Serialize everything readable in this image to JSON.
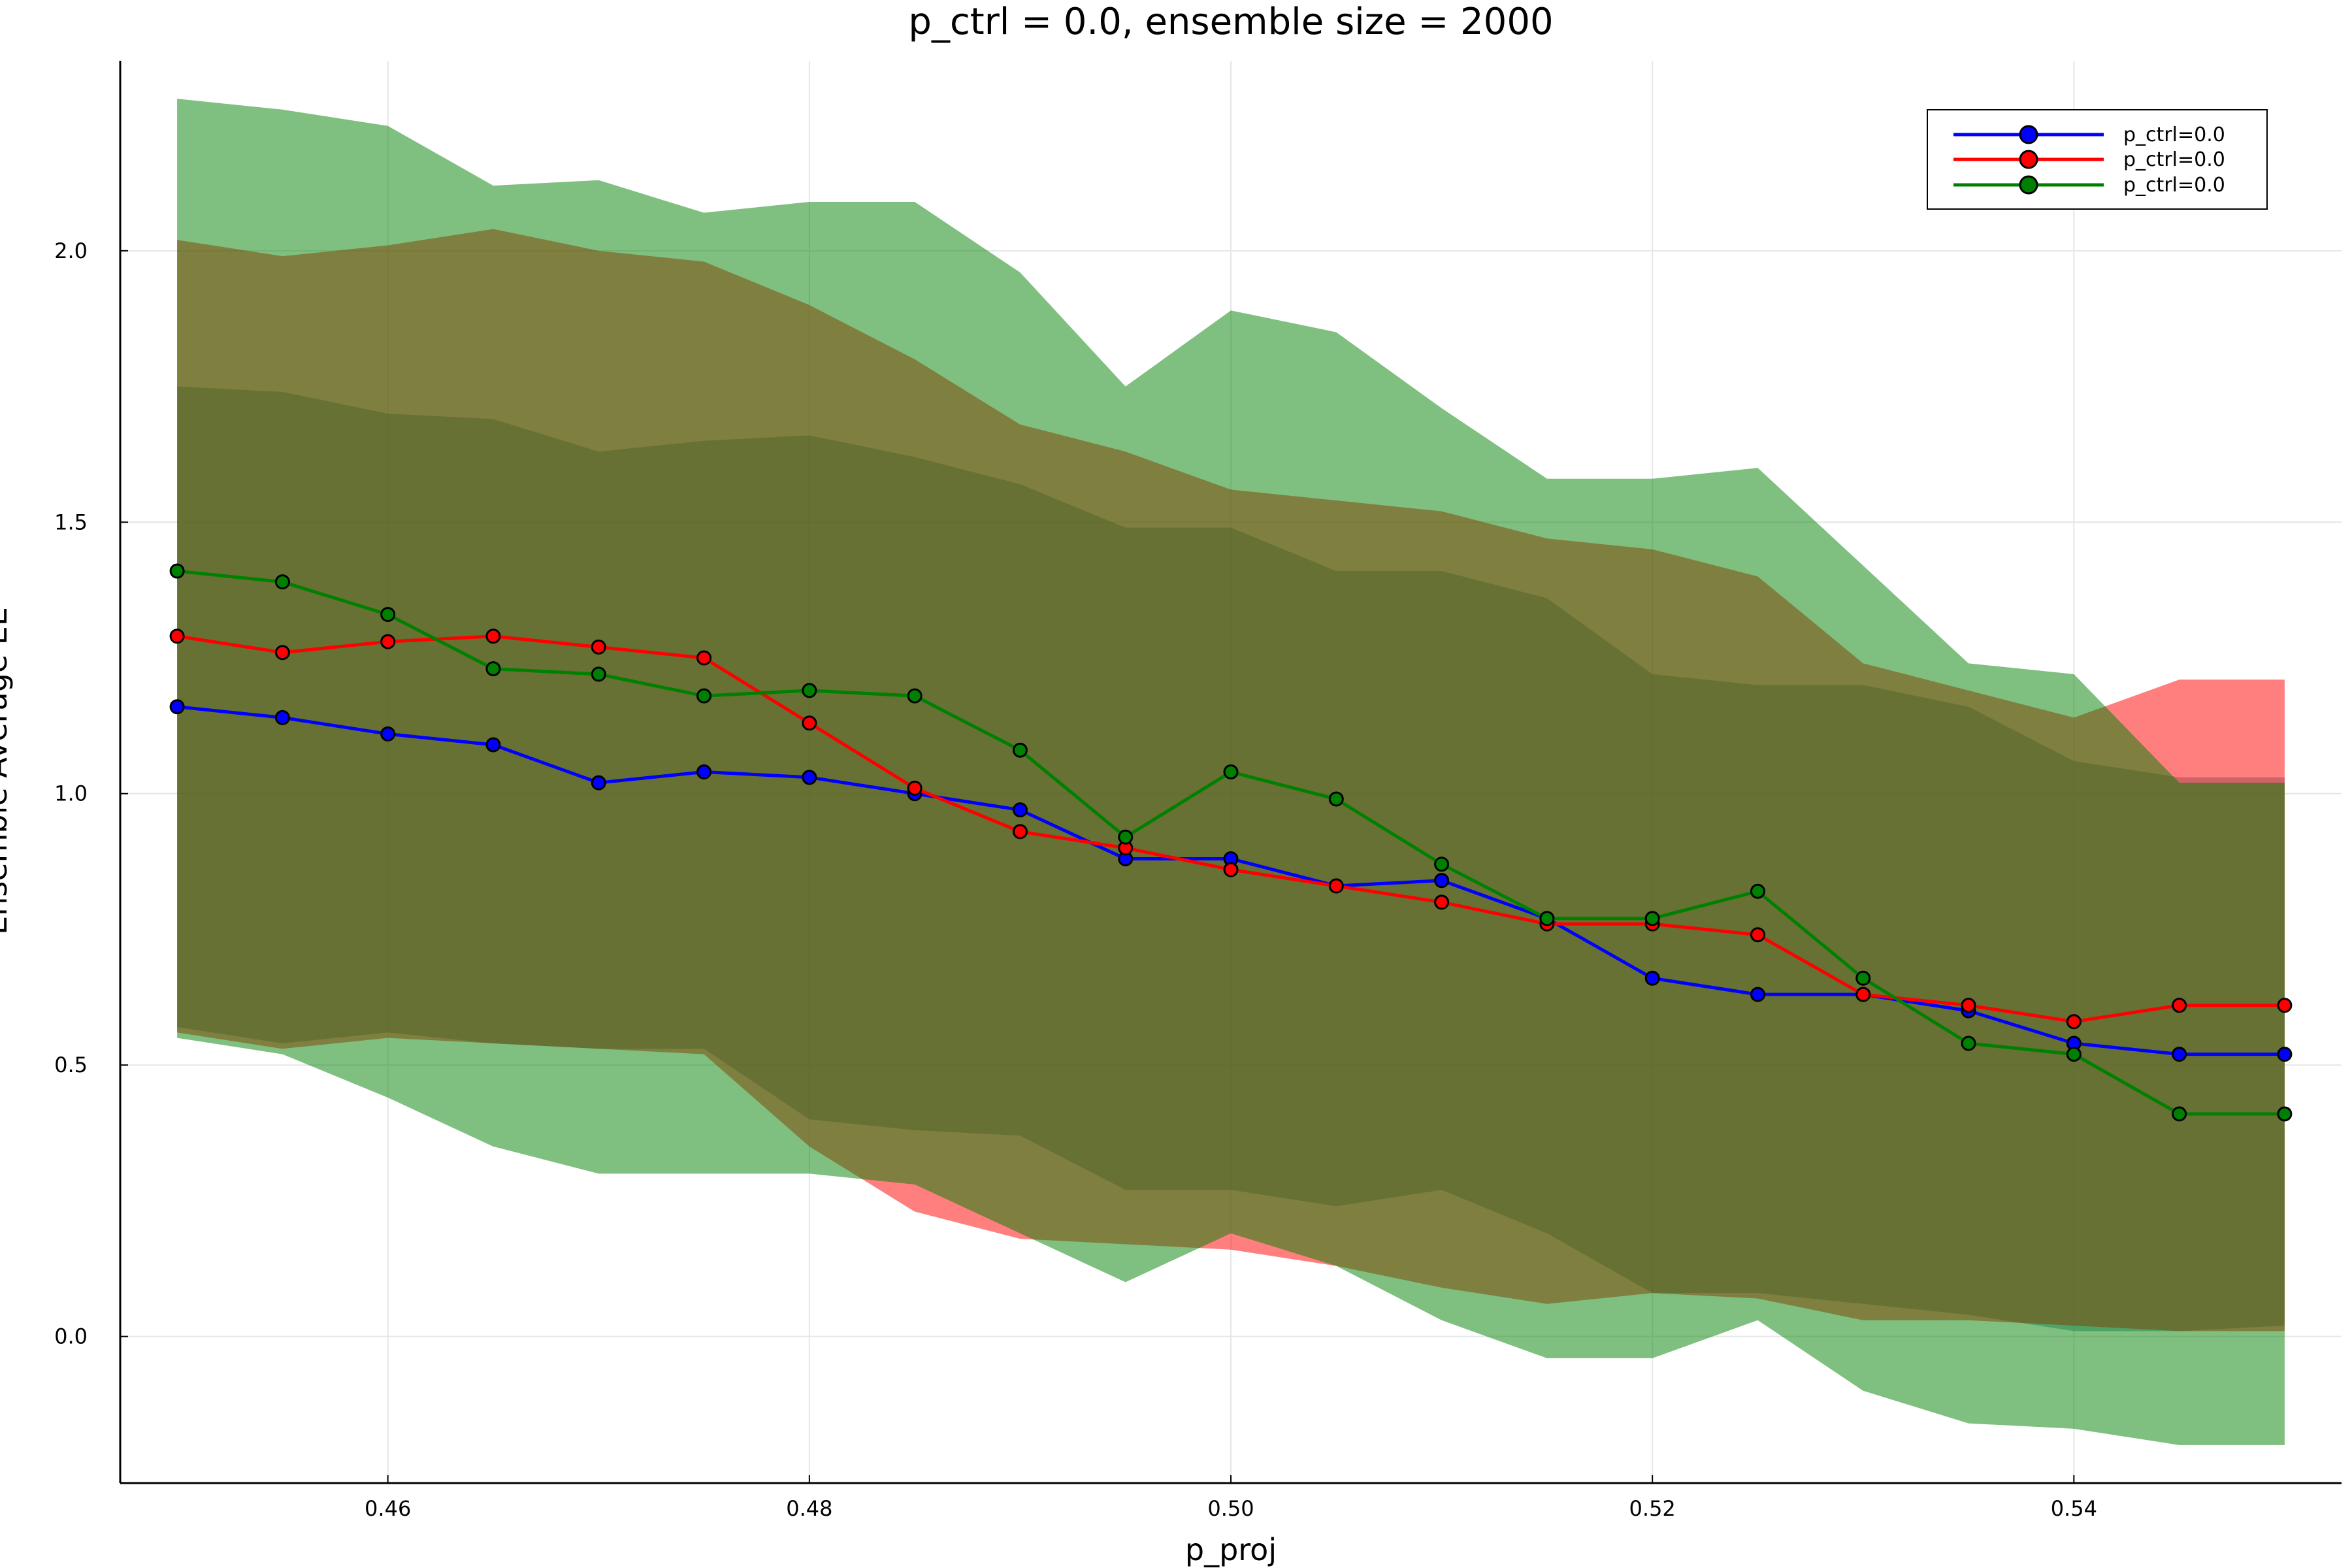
{
  "chart_data": {
    "type": "line",
    "title": "p_ctrl = 0.0, ensemble size = 2000",
    "xlabel": "p_proj",
    "ylabel": "Ensemble Average EE",
    "xlim": [
      0.4473,
      0.5527
    ],
    "ylim": [
      -0.27,
      2.35
    ],
    "xticks": [
      0.46,
      0.48,
      0.5,
      0.52,
      0.54
    ],
    "xtick_labels": [
      "0.46",
      "0.48",
      "0.50",
      "0.52",
      "0.54"
    ],
    "yticks": [
      0.0,
      0.5,
      1.0,
      1.5,
      2.0
    ],
    "ytick_labels": [
      "0.0",
      "0.5",
      "1.0",
      "1.5",
      "2.0"
    ],
    "grid": true,
    "legend_position": "top-right",
    "x": [
      0.45,
      0.455,
      0.46,
      0.465,
      0.47,
      0.475,
      0.48,
      0.485,
      0.49,
      0.495,
      0.5,
      0.505,
      0.51,
      0.515,
      0.52,
      0.525,
      0.53,
      0.535,
      0.54,
      0.545,
      0.55
    ],
    "series": [
      {
        "name": "p_ctrl=0.0",
        "color": "#0000ff",
        "band_color": "#3f8da0",
        "values": [
          1.16,
          1.14,
          1.11,
          1.09,
          1.02,
          1.04,
          1.03,
          1.0,
          0.97,
          0.88,
          0.88,
          0.83,
          0.84,
          0.77,
          0.66,
          0.63,
          0.63,
          0.6,
          0.54,
          0.52,
          0.52
        ],
        "upper": [
          1.75,
          1.74,
          1.7,
          1.69,
          1.63,
          1.65,
          1.66,
          1.62,
          1.57,
          1.49,
          1.49,
          1.41,
          1.41,
          1.36,
          1.22,
          1.2,
          1.2,
          1.16,
          1.06,
          1.03,
          1.03
        ],
        "lower": [
          0.57,
          0.54,
          0.56,
          0.54,
          0.53,
          0.53,
          0.4,
          0.38,
          0.37,
          0.27,
          0.27,
          0.24,
          0.27,
          0.19,
          0.08,
          0.08,
          0.06,
          0.04,
          0.01,
          0.01,
          0.02
        ]
      },
      {
        "name": "p_ctrl=0.0",
        "color": "#ff0000",
        "band_color": "#ff0000",
        "values": [
          1.29,
          1.26,
          1.28,
          1.29,
          1.27,
          1.25,
          1.13,
          1.01,
          0.93,
          0.9,
          0.86,
          0.83,
          0.8,
          0.76,
          0.76,
          0.74,
          0.63,
          0.61,
          0.58,
          0.61,
          0.61
        ],
        "upper": [
          2.02,
          1.99,
          2.01,
          2.04,
          2.0,
          1.98,
          1.9,
          1.8,
          1.68,
          1.63,
          1.56,
          1.54,
          1.52,
          1.47,
          1.45,
          1.4,
          1.24,
          1.19,
          1.14,
          1.21,
          1.21
        ],
        "lower": [
          0.56,
          0.53,
          0.55,
          0.54,
          0.53,
          0.52,
          0.35,
          0.23,
          0.18,
          0.17,
          0.16,
          0.13,
          0.09,
          0.06,
          0.08,
          0.07,
          0.03,
          0.03,
          0.02,
          0.01,
          0.01
        ]
      },
      {
        "name": "p_ctrl=0.0",
        "color": "#008000",
        "band_color": "#008000",
        "values": [
          1.41,
          1.39,
          1.33,
          1.23,
          1.22,
          1.18,
          1.19,
          1.18,
          1.08,
          0.92,
          1.04,
          0.99,
          0.87,
          0.77,
          0.77,
          0.82,
          0.66,
          0.54,
          0.52,
          0.41,
          0.41
        ],
        "upper": [
          2.28,
          2.26,
          2.23,
          2.12,
          2.13,
          2.07,
          2.09,
          2.09,
          1.96,
          1.75,
          1.89,
          1.85,
          1.71,
          1.58,
          1.58,
          1.6,
          1.42,
          1.24,
          1.22,
          1.02,
          1.02
        ],
        "lower": [
          0.55,
          0.52,
          0.44,
          0.35,
          0.3,
          0.3,
          0.3,
          0.28,
          0.19,
          0.1,
          0.19,
          0.13,
          0.03,
          -0.04,
          -0.04,
          0.03,
          -0.1,
          -0.16,
          -0.17,
          -0.2,
          -0.2
        ]
      }
    ]
  }
}
